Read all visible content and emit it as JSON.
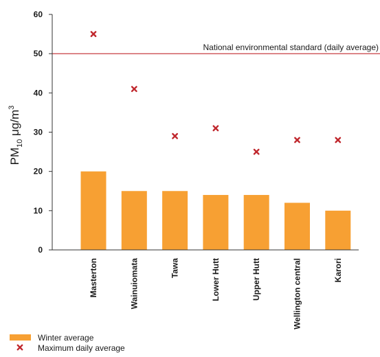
{
  "chart_data": {
    "type": "bar",
    "categories": [
      "Masterton",
      "Wainuiomata",
      "Tawa",
      "Lower Hutt",
      "Upper Hutt",
      "Wellington central",
      "Karori"
    ],
    "series": [
      {
        "name": "Winter average",
        "kind": "bar",
        "color": "#f7a033",
        "values": [
          20,
          15,
          15,
          14,
          14,
          12,
          10
        ]
      },
      {
        "name": "Maximum daily average",
        "kind": "marker",
        "marker": "x",
        "color": "#c0272d",
        "values": [
          55,
          41,
          29,
          31,
          25,
          28,
          28
        ]
      }
    ],
    "reference_line": {
      "label": "National environmental standard (daily average)",
      "value": 50,
      "color": "#c0272d"
    },
    "ylabel": {
      "base": "PM",
      "subscript": "10",
      "unit": " μg/m",
      "superscript": "3"
    },
    "ylim": [
      0,
      60
    ],
    "yticks": [
      0,
      10,
      20,
      30,
      40,
      50,
      60
    ],
    "grid": false,
    "legend_position": "bottom-left"
  }
}
